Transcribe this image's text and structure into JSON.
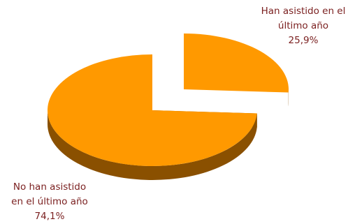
{
  "chart_data": {
    "type": "pie",
    "style": "3d-exploded",
    "slices": [
      {
        "label_lines": [
          "Han asistido en el",
          "último año"
        ],
        "value_text": "25,9%",
        "value": 25.9,
        "exploded": true
      },
      {
        "label_lines": [
          "No han asistido",
          "en el último año"
        ],
        "value_text": "74,1%",
        "value": 74.1,
        "exploded": false
      }
    ],
    "colors": {
      "top": "#ff9900",
      "side": "#8a5000"
    }
  }
}
